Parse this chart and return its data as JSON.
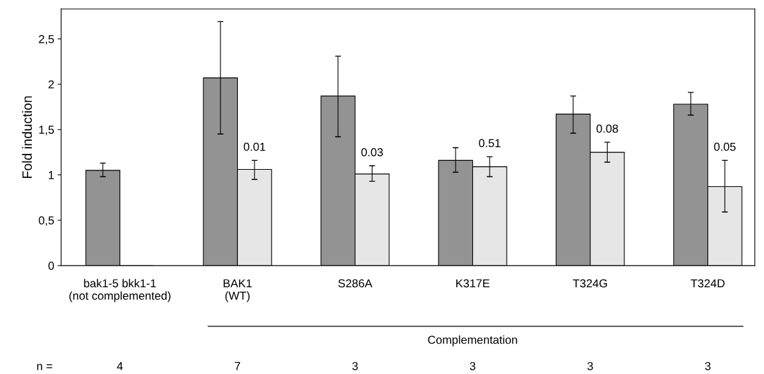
{
  "chart_data": {
    "type": "bar",
    "ylabel": "Fold induction",
    "categories": [
      "bak1-5 bkk1-1\n(not complemented)",
      "BAK1\n(WT)",
      "S286A",
      "K317E",
      "T324G",
      "T324D"
    ],
    "series": [
      {
        "color": "#939393",
        "values": [
          1.05,
          2.07,
          1.87,
          1.16,
          1.67,
          1.78
        ],
        "errors": [
          [
            0.98,
            1.13
          ],
          [
            1.45,
            2.69
          ],
          [
            1.42,
            2.31
          ],
          [
            1.03,
            1.3
          ],
          [
            1.46,
            1.87
          ],
          [
            1.66,
            1.91
          ]
        ]
      },
      {
        "color": "#e6e6e6",
        "values": [
          0,
          1.06,
          1.01,
          1.09,
          1.25,
          0.87
        ],
        "errors": [
          null,
          [
            0.95,
            1.16
          ],
          [
            0.93,
            1.1
          ],
          [
            0.98,
            1.2
          ],
          [
            1.14,
            1.36
          ],
          [
            0.59,
            1.16
          ]
        ]
      }
    ],
    "ylim": [
      0,
      2.83
    ],
    "yticks": [
      {
        "value": 0,
        "label": "0"
      },
      {
        "value": 0.5,
        "label": "0,5"
      },
      {
        "value": 1,
        "label": "1"
      },
      {
        "value": 1.5,
        "label": "1,5"
      },
      {
        "value": 2,
        "label": "2"
      },
      {
        "value": 2.5,
        "label": "2,5"
      }
    ],
    "annotations": [
      "0.01",
      "0.03",
      "0.51",
      "0.08",
      "0.05",
      "Complementation",
      "n =",
      "4",
      "7",
      "3",
      "3",
      "3",
      "3"
    ],
    "grid": false,
    "legend": false
  }
}
